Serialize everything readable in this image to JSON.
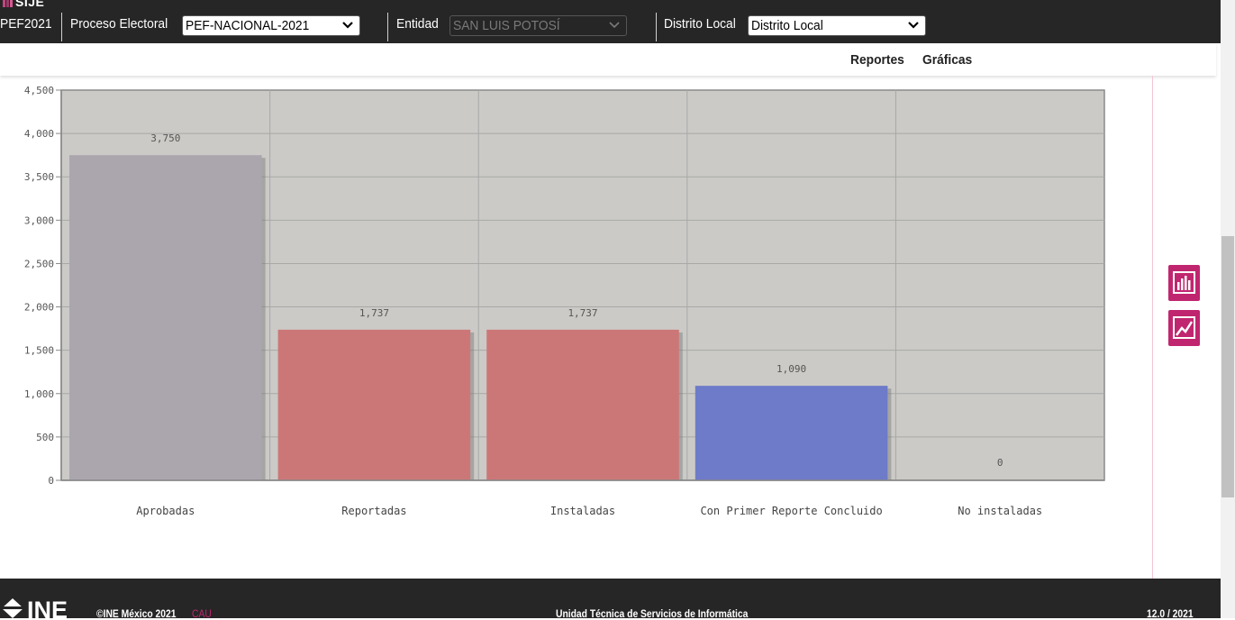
{
  "header": {
    "logo_text": "SIJE",
    "process_code": "PEF2021",
    "proceso_label": "Proceso Electoral",
    "proceso_value": "PEF-NACIONAL-2021",
    "entidad_label": "Entidad",
    "entidad_value": "SAN LUIS POTOSÍ",
    "distrito_label": "Distrito Local",
    "distrito_value": "Distrito Local"
  },
  "nav": {
    "reportes": "Reportes",
    "graficas": "Gráficas"
  },
  "side_buttons": [
    {
      "icon": "bar-chart-icon"
    },
    {
      "icon": "line-chart-icon"
    }
  ],
  "chart_data": {
    "type": "bar",
    "categories": [
      "Aprobadas",
      "Reportadas",
      "Instaladas",
      "Con Primer Reporte Concluido",
      "No instaladas"
    ],
    "values": [
      3750,
      1737,
      1737,
      1090,
      0
    ],
    "data_labels": [
      "3,750",
      "1,737",
      "1,737",
      "1,090",
      "0"
    ],
    "colors": [
      "#aba6ad",
      "#cc7777",
      "#cc7777",
      "#6e7bc9",
      "#cc7777"
    ],
    "ylim": [
      0,
      4500
    ],
    "yticks": [
      0,
      500,
      1000,
      1500,
      2000,
      2500,
      3000,
      3500,
      4000,
      4500
    ],
    "ytick_labels": [
      "0",
      "500",
      "1,000",
      "1,500",
      "2,000",
      "2,500",
      "3,000",
      "3,500",
      "4,000",
      "4,500"
    ],
    "grid": true,
    "plot_background": "#cbcac6"
  },
  "footer": {
    "brand": "INE",
    "copyright": "©INE México 2021",
    "cau": "CAU",
    "unit": "Unidad Técnica de Servicios de Informática",
    "version": "12.0 / 2021"
  }
}
